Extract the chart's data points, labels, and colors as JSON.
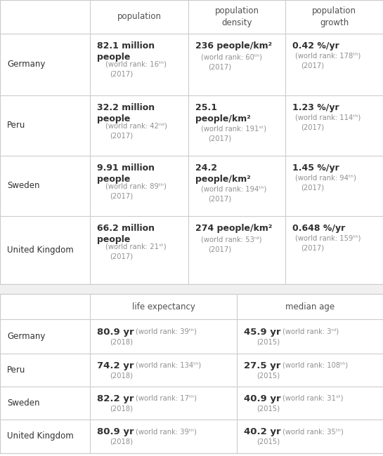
{
  "table1": {
    "headers": [
      "",
      "population",
      "population\ndensity",
      "population\ngrowth"
    ],
    "rows": [
      {
        "country": "Germany",
        "pop_main": "82.1 million\npeople",
        "pop_sub1": "(world rank: 16ᵗʰ)",
        "pop_sub2": "(2017)",
        "den_main": "236 people/km²",
        "den_sub1": "(world rank: 60ᵗʰ)",
        "den_sub2": "(2017)",
        "gro_main": "0.42 %/yr",
        "gro_sub1": "(world rank: 178ᵗʰ)",
        "gro_sub2": "(2017)"
      },
      {
        "country": "Peru",
        "pop_main": "32.2 million\npeople",
        "pop_sub1": "(world rank: 42ⁿᵈ)",
        "pop_sub2": "(2017)",
        "den_main": "25.1\npeople/km²",
        "den_sub1": "(world rank: 191ˢᵗ)",
        "den_sub2": "(2017)",
        "gro_main": "1.23 %/yr",
        "gro_sub1": "(world rank: 114ᵗʰ)",
        "gro_sub2": "(2017)"
      },
      {
        "country": "Sweden",
        "pop_main": "9.91 million\npeople",
        "pop_sub1": "(world rank: 89ᵗʰ)",
        "pop_sub2": "(2017)",
        "den_main": "24.2\npeople/km²",
        "den_sub1": "(world rank: 194ᵗʰ)",
        "den_sub2": "(2017)",
        "gro_main": "1.45 %/yr",
        "gro_sub1": "(world rank: 94ᵗʰ)",
        "gro_sub2": "(2017)"
      },
      {
        "country": "United Kingdom",
        "pop_main": "66.2 million\npeople",
        "pop_sub1": "(world rank: 21ˢᵗ)",
        "pop_sub2": "(2017)",
        "den_main": "274 people/km²",
        "den_sub1": "(world rank: 53ʳᵈ)",
        "den_sub2": "(2017)",
        "gro_main": "0.648 %/yr",
        "gro_sub1": "(world rank: 159ᵗʰ)",
        "gro_sub2": "(2017)"
      }
    ]
  },
  "table2": {
    "headers": [
      "",
      "life expectancy",
      "median age"
    ],
    "rows": [
      {
        "country": "Germany",
        "le_main": "80.9 yr",
        "le_rank": "(world rank: 39ᵗʰ)",
        "le_year": "(2018)",
        "ma_main": "45.9 yr",
        "ma_rank": "(world rank: 3ʳᵈ)",
        "ma_year": "(2015)"
      },
      {
        "country": "Peru",
        "le_main": "74.2 yr",
        "le_rank": "(world rank: 134ᵗʰ)",
        "le_year": "(2018)",
        "ma_main": "27.5 yr",
        "ma_rank": "(world rank: 108ᵗʰ)",
        "ma_year": "(2015)"
      },
      {
        "country": "Sweden",
        "le_main": "82.2 yr",
        "le_rank": "(world rank: 17ᵗʰ)",
        "le_year": "(2018)",
        "ma_main": "40.9 yr",
        "ma_rank": "(world rank: 31ˢᵗ)",
        "ma_year": "(2015)"
      },
      {
        "country": "United Kingdom",
        "le_main": "80.9 yr",
        "le_rank": "(world rank: 39ᵗʰ)",
        "le_year": "(2018)",
        "ma_main": "40.2 yr",
        "ma_rank": "(world rank: 35ᵗʰ)",
        "ma_year": "(2015)"
      }
    ]
  },
  "bg_color": "#ffffff",
  "line_color": "#cccccc",
  "text_color": "#303030",
  "sub_color": "#909090",
  "header_color": "#505050",
  "gap_color": "#f0f0f0"
}
